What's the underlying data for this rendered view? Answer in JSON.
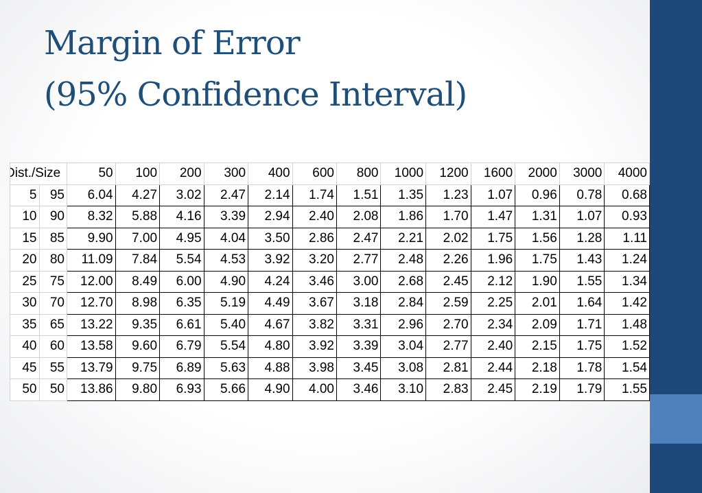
{
  "slide": {
    "title_line1": "Margin of Error",
    "title_line2": "(95% Confidence Interval)",
    "colors": {
      "title": "#1f4e79",
      "band": "#1e477a",
      "accent": "#4f81bd"
    }
  },
  "table": {
    "corner_label": "Dist./Size",
    "sizes": [
      "50",
      "100",
      "200",
      "300",
      "400",
      "600",
      "800",
      "1000",
      "1200",
      "1600",
      "2000",
      "3000",
      "4000"
    ],
    "rows": [
      {
        "p": "5",
        "q": "95",
        "values": [
          "6.04",
          "4.27",
          "3.02",
          "2.47",
          "2.14",
          "1.74",
          "1.51",
          "1.35",
          "1.23",
          "1.07",
          "0.96",
          "0.78",
          "0.68"
        ]
      },
      {
        "p": "10",
        "q": "90",
        "values": [
          "8.32",
          "5.88",
          "4.16",
          "3.39",
          "2.94",
          "2.40",
          "2.08",
          "1.86",
          "1.70",
          "1.47",
          "1.31",
          "1.07",
          "0.93"
        ]
      },
      {
        "p": "15",
        "q": "85",
        "values": [
          "9.90",
          "7.00",
          "4.95",
          "4.04",
          "3.50",
          "2.86",
          "2.47",
          "2.21",
          "2.02",
          "1.75",
          "1.56",
          "1.28",
          "1.11"
        ]
      },
      {
        "p": "20",
        "q": "80",
        "values": [
          "11.09",
          "7.84",
          "5.54",
          "4.53",
          "3.92",
          "3.20",
          "2.77",
          "2.48",
          "2.26",
          "1.96",
          "1.75",
          "1.43",
          "1.24"
        ]
      },
      {
        "p": "25",
        "q": "75",
        "values": [
          "12.00",
          "8.49",
          "6.00",
          "4.90",
          "4.24",
          "3.46",
          "3.00",
          "2.68",
          "2.45",
          "2.12",
          "1.90",
          "1.55",
          "1.34"
        ]
      },
      {
        "p": "30",
        "q": "70",
        "values": [
          "12.70",
          "8.98",
          "6.35",
          "5.19",
          "4.49",
          "3.67",
          "3.18",
          "2.84",
          "2.59",
          "2.25",
          "2.01",
          "1.64",
          "1.42"
        ]
      },
      {
        "p": "35",
        "q": "65",
        "values": [
          "13.22",
          "9.35",
          "6.61",
          "5.40",
          "4.67",
          "3.82",
          "3.31",
          "2.96",
          "2.70",
          "2.34",
          "2.09",
          "1.71",
          "1.48"
        ]
      },
      {
        "p": "40",
        "q": "60",
        "values": [
          "13.58",
          "9.60",
          "6.79",
          "5.54",
          "4.80",
          "3.92",
          "3.39",
          "3.04",
          "2.77",
          "2.40",
          "2.15",
          "1.75",
          "1.52"
        ]
      },
      {
        "p": "45",
        "q": "55",
        "values": [
          "13.79",
          "9.75",
          "6.89",
          "5.63",
          "4.88",
          "3.98",
          "3.45",
          "3.08",
          "2.81",
          "2.44",
          "2.18",
          "1.78",
          "1.54"
        ]
      },
      {
        "p": "50",
        "q": "50",
        "values": [
          "13.86",
          "9.80",
          "6.93",
          "5.66",
          "4.90",
          "4.00",
          "3.46",
          "3.10",
          "2.83",
          "2.45",
          "2.19",
          "1.79",
          "1.55"
        ]
      }
    ]
  }
}
